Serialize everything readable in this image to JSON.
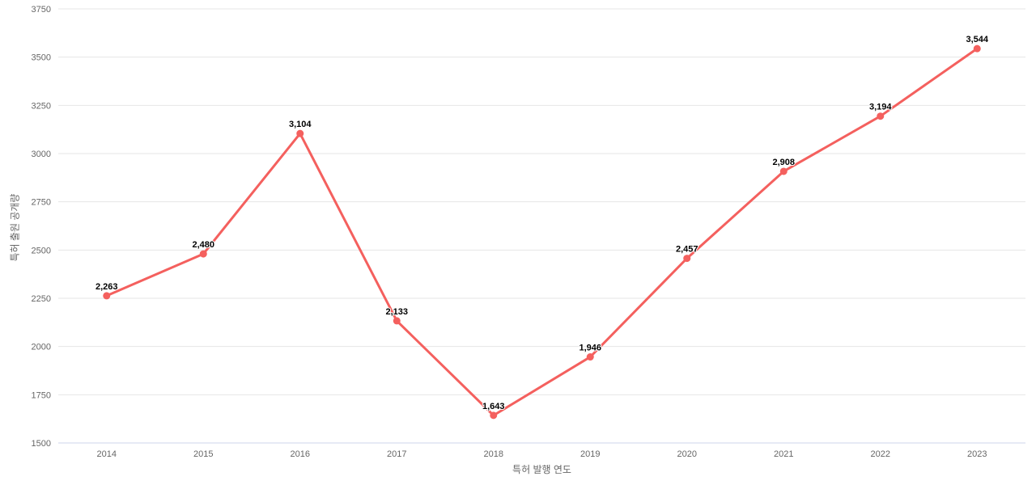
{
  "chart_data": {
    "type": "line",
    "categories": [
      "2014",
      "2015",
      "2016",
      "2017",
      "2018",
      "2019",
      "2020",
      "2021",
      "2022",
      "2023"
    ],
    "series": [
      {
        "name": "특허 출원 공개량",
        "values": [
          2263,
          2480,
          3104,
          2133,
          1643,
          1946,
          2457,
          2908,
          3194,
          3544
        ],
        "value_labels": [
          "2,263",
          "2,480",
          "3,104",
          "2,133",
          "1,643",
          "1,946",
          "2,457",
          "2,908",
          "3,194",
          "3,544"
        ],
        "color": "#f4605e"
      }
    ],
    "title": "",
    "xlabel": "특허 발행 연도",
    "ylabel": "특허 출원 공개량",
    "ylim": [
      1500,
      3750
    ],
    "ytick_step": 250,
    "ytick_labels": [
      "1500",
      "1750",
      "2000",
      "2250",
      "2500",
      "2750",
      "3000",
      "3250",
      "3500",
      "3750"
    ],
    "grid": true,
    "legend_position": "none",
    "colors": {
      "gridline": "#e6e6e6",
      "axis_line": "#ccd6eb",
      "tick_label": "#666666",
      "axis_title": "#666666",
      "data_label": "#000000",
      "background": "#ffffff"
    }
  }
}
